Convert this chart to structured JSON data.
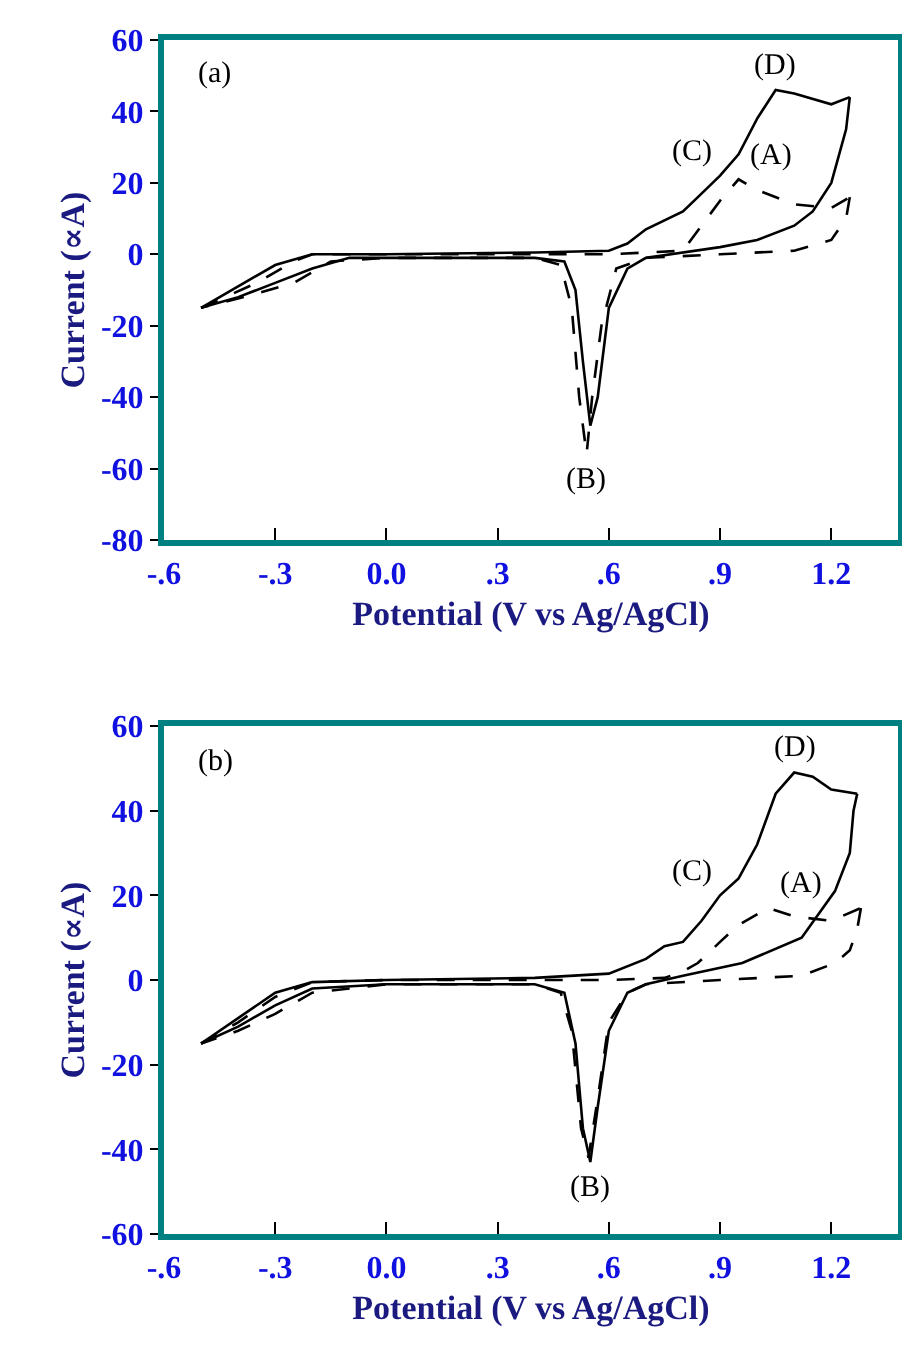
{
  "chart_data": [
    {
      "type": "line",
      "xlabel": "Potential (V vs Ag/AgCl)",
      "ylabel": "Current (∝A)",
      "xlim": [
        -0.6,
        1.38
      ],
      "xticks": [
        {
          "value": -0.6,
          "label": "-.6"
        },
        {
          "value": -0.3,
          "label": "-.3"
        },
        {
          "value": 0,
          "label": "0.0"
        },
        {
          "value": 0.3,
          "label": ".3"
        },
        {
          "value": 0.6,
          "label": ".6"
        },
        {
          "value": 0.9,
          "label": ".9"
        },
        {
          "value": 1.2,
          "label": "1.2"
        }
      ],
      "ylim": [
        -80,
        60
      ],
      "yticks": [
        -80,
        -60,
        -40,
        -20,
        0,
        20,
        40,
        60
      ],
      "series": [
        {
          "color": "#000000",
          "line_style": "solid",
          "x": [
            -0.5,
            -0.4,
            -0.3,
            -0.2,
            0,
            0.4,
            0.6,
            0.65,
            0.7,
            0.8,
            0.85,
            0.9,
            0.95,
            1.0,
            1.05,
            1.1,
            1.2,
            1.25
          ],
          "values": [
            -15,
            -9,
            -3,
            0,
            0,
            0.5,
            1,
            3,
            7,
            12,
            17,
            22,
            28,
            38,
            46,
            45,
            42,
            44
          ]
        },
        {
          "color": "#000000",
          "line_style": "solid",
          "x": [
            1.25,
            1.24,
            1.2,
            1.15,
            1.1,
            1.0,
            0.9,
            0.7,
            0.65,
            0.6,
            0.57,
            0.55,
            0.53,
            0.51,
            0.48,
            0.4,
            0,
            -0.1,
            -0.2,
            -0.3,
            -0.4,
            -0.5
          ],
          "values": [
            44,
            35,
            20,
            12,
            8,
            4,
            2,
            -1,
            -4,
            -15,
            -40,
            -48,
            -30,
            -10,
            -2,
            -1,
            -1,
            -1,
            -4,
            -8,
            -12,
            -15
          ]
        },
        {
          "color": "#000000",
          "line_style": "dashed",
          "x": [
            -0.5,
            -0.35,
            -0.25,
            -0.2,
            0,
            0.6,
            0.8,
            0.85,
            0.9,
            0.95,
            1.0,
            1.1,
            1.2,
            1.25
          ],
          "values": [
            -15,
            -8,
            -2,
            0,
            0,
            0,
            1,
            8,
            15,
            21,
            18,
            14,
            13,
            16
          ]
        },
        {
          "color": "#000000",
          "line_style": "dashed",
          "x": [
            1.25,
            1.24,
            1.2,
            1.1,
            0.9,
            0.7,
            0.62,
            0.58,
            0.555,
            0.54,
            0.52,
            0.5,
            0.47,
            0.4,
            0,
            -0.15,
            -0.25,
            -0.35,
            -0.5
          ],
          "values": [
            16,
            10,
            4,
            1,
            0,
            -1,
            -4,
            -20,
            -40,
            -56,
            -40,
            -15,
            -3,
            -1,
            -1,
            -2,
            -8,
            -11,
            -15
          ]
        }
      ],
      "annotations": [
        "(a)",
        {
          "text": "(D)",
          "x": 1.05,
          "y": 46
        },
        {
          "text": "(C)",
          "x": 0.9,
          "y": 22
        },
        {
          "text": "(A)",
          "x": 0.95,
          "y": 21
        },
        {
          "text": "(B)",
          "x": 0.54,
          "y": -56
        }
      ]
    },
    {
      "type": "line",
      "xlabel": "Potential (V vs Ag/AgCl)",
      "ylabel": "Current (∝A)",
      "xlim": [
        -0.6,
        1.38
      ],
      "xticks": [
        {
          "value": -0.6,
          "label": "-.6"
        },
        {
          "value": -0.3,
          "label": "-.3"
        },
        {
          "value": 0,
          "label": "0.0"
        },
        {
          "value": 0.3,
          "label": ".3"
        },
        {
          "value": 0.6,
          "label": ".6"
        },
        {
          "value": 0.9,
          "label": ".9"
        },
        {
          "value": 1.2,
          "label": "1.2"
        }
      ],
      "ylim": [
        -60,
        60
      ],
      "yticks": [
        -60,
        -40,
        -20,
        0,
        20,
        40,
        60
      ],
      "series": [
        {
          "color": "#000000",
          "line_style": "solid",
          "x": [
            -0.5,
            -0.4,
            -0.3,
            -0.2,
            0,
            0.4,
            0.6,
            0.7,
            0.75,
            0.8,
            0.85,
            0.9,
            0.95,
            1.0,
            1.05,
            1.1,
            1.15,
            1.2,
            1.27
          ],
          "values": [
            -15,
            -9,
            -3,
            -0.5,
            0,
            0.5,
            1.5,
            5,
            8,
            9,
            14,
            20,
            24,
            32,
            44,
            49,
            48,
            45,
            44
          ]
        },
        {
          "color": "#000000",
          "line_style": "solid",
          "x": [
            1.27,
            1.26,
            1.25,
            1.21,
            1.12,
            0.96,
            0.8,
            0.7,
            0.65,
            0.6,
            0.57,
            0.55,
            0.53,
            0.51,
            0.48,
            0.4,
            0,
            -0.2,
            -0.3,
            -0.4,
            -0.5
          ],
          "values": [
            44,
            40,
            30,
            21,
            10,
            4,
            1,
            -1,
            -3,
            -12,
            -30,
            -43,
            -35,
            -15,
            -3,
            -1,
            -1,
            -2,
            -6,
            -11,
            -15
          ]
        },
        {
          "color": "#000000",
          "line_style": "dashed",
          "x": [
            -0.5,
            -0.4,
            -0.3,
            -0.2,
            0,
            0.6,
            0.75,
            0.8,
            0.84,
            0.9,
            0.95,
            1.03,
            1.1,
            1.2,
            1.28
          ],
          "values": [
            -15,
            -10,
            -4,
            -0.5,
            0,
            0,
            0.5,
            2,
            4,
            9,
            13,
            17,
            15,
            14,
            17
          ]
        },
        {
          "color": "#000000",
          "line_style": "dashed",
          "x": [
            1.28,
            1.27,
            1.25,
            1.21,
            1.12,
            0.9,
            0.7,
            0.65,
            0.6,
            0.57,
            0.545,
            0.525,
            0.5,
            0.47,
            0.4,
            0,
            -0.2,
            -0.3,
            -0.4,
            -0.5
          ],
          "values": [
            17,
            12,
            7,
            4,
            1,
            0,
            -1,
            -3,
            -10,
            -28,
            -42,
            -35,
            -12,
            -3,
            -1,
            -1,
            -3,
            -8,
            -12,
            -15
          ]
        }
      ],
      "annotations": [
        "(b)",
        {
          "text": "(D)",
          "x": 1.1,
          "y": 49
        },
        {
          "text": "(C)",
          "x": 0.9,
          "y": 20
        },
        {
          "text": "(A)",
          "x": 1.03,
          "y": 17
        },
        {
          "text": "(B)",
          "x": 0.55,
          "y": -43
        }
      ]
    }
  ]
}
